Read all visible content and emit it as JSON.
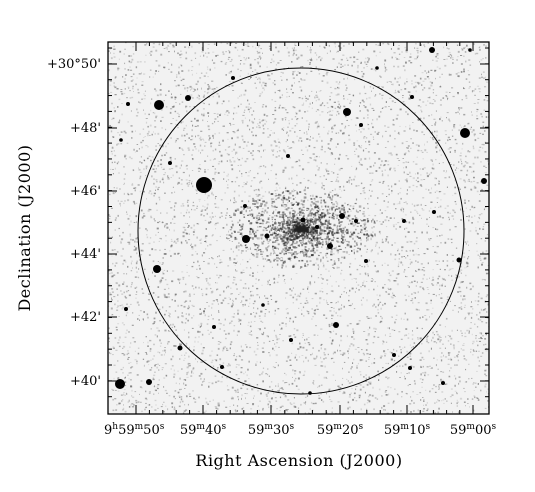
{
  "figure": {
    "x_axis_title": "Right Ascension (J2000)",
    "y_axis_title": "Declination (J2000)",
    "x_ticks": [
      {
        "main": "9",
        "sup1": "h",
        "mid": "59",
        "sup2": "m",
        "end": "50",
        "sup3": "s"
      },
      {
        "main": "",
        "sup1": "",
        "mid": "59",
        "sup2": "m",
        "end": "40",
        "sup3": "s"
      },
      {
        "main": "",
        "sup1": "",
        "mid": "59",
        "sup2": "m",
        "end": "30",
        "sup3": "s"
      },
      {
        "main": "",
        "sup1": "",
        "mid": "59",
        "sup2": "m",
        "end": "20",
        "sup3": "s"
      },
      {
        "main": "",
        "sup1": "",
        "mid": "59",
        "sup2": "m",
        "end": "10",
        "sup3": "s"
      },
      {
        "main": "",
        "sup1": "",
        "mid": "59",
        "sup2": "m",
        "end": "00",
        "sup3": "s"
      }
    ],
    "y_ticks": [
      {
        "deg": "+30°",
        "min": "50'"
      },
      {
        "deg": "",
        "min": "+48'"
      },
      {
        "deg": "",
        "min": "+46'"
      },
      {
        "deg": "",
        "min": "+44'"
      },
      {
        "deg": "",
        "min": "+42'"
      },
      {
        "deg": "",
        "min": "+40'"
      }
    ],
    "colors": {
      "background": "#ffffff",
      "noise": "#555555",
      "star": "#000000"
    }
  }
}
